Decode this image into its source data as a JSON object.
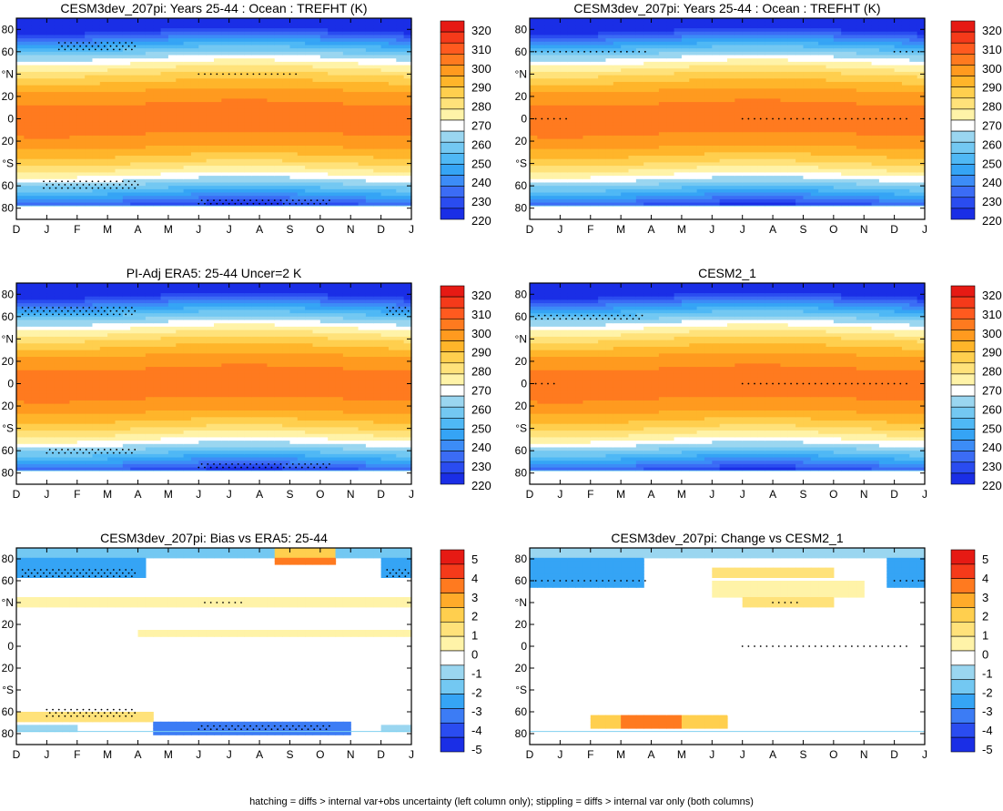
{
  "footer_note": "hatching = diffs > internal var+obs uncertainty (left column only); stippling = diffs > internal var only (both columns)",
  "colors": {
    "temperature_levels": [
      "#1a2ee6",
      "#2a4cf0",
      "#3b6cf5",
      "#3c8cf7",
      "#35a4f5",
      "#4fb8f5",
      "#73c8f2",
      "#9ad6f0",
      "#ffffff",
      "#fff3a8",
      "#ffe27a",
      "#ffcf4e",
      "#ffb52a",
      "#ff9a1f",
      "#ff7a1f",
      "#ff5a1f",
      "#f53a1a",
      "#e61a14"
    ],
    "anomaly_levels": [
      "#1a2ee6",
      "#2a4cf0",
      "#3c7cf5",
      "#35a4f5",
      "#73c8f2",
      "#9ad6f0",
      "#ffffff",
      "#fff3a8",
      "#ffe27a",
      "#ffcf4e",
      "#ffab2a",
      "#ff7a1f",
      "#f53a1a",
      "#e61a14"
    ]
  },
  "chart_data": [
    {
      "type": "heatmap",
      "title": "CESM3dev_207pi: Years 25-44 : Ocean : TREFHT (K)",
      "x_tick_labels": [
        "D",
        "J",
        "F",
        "M",
        "A",
        "M",
        "J",
        "J",
        "A",
        "S",
        "O",
        "N",
        "D",
        "J"
      ],
      "y_tick_labels": [
        "80",
        "60",
        "°N",
        "20",
        "0",
        "20",
        "°S",
        "60",
        "80"
      ],
      "colorbar_labels": [
        "320",
        "310",
        "300",
        "290",
        "280",
        "270",
        "260",
        "250",
        "240",
        "230",
        "220"
      ],
      "field": "temperature",
      "ylim": [
        -90,
        90
      ],
      "stipple_regions": [
        "northern 60-70 in Jan-Apr",
        "northern 40 in Jul-Sep",
        "southern 60 in Jan-Apr",
        "southern 75 in Jun-Oct"
      ]
    },
    {
      "type": "heatmap",
      "title": "CESM3dev_207pi: Years 25-44 : Ocean : TREFHT (K)",
      "x_tick_labels": [
        "D",
        "J",
        "F",
        "M",
        "A",
        "M",
        "J",
        "J",
        "A",
        "S",
        "O",
        "N",
        "D",
        "J"
      ],
      "y_tick_labels": [
        "80",
        "60",
        "°N",
        "20",
        "0",
        "20",
        "°S",
        "60",
        "80"
      ],
      "colorbar_labels": [
        "320",
        "310",
        "300",
        "290",
        "280",
        "270",
        "260",
        "250",
        "240",
        "230",
        "220"
      ],
      "field": "temperature",
      "ylim": [
        -90,
        90
      ],
      "stipple_regions": [
        "northern 60 in Dec-Apr",
        "equator Jul-Dec"
      ]
    },
    {
      "type": "heatmap",
      "title": "PI-Adj ERA5: 25-44 Uncer=2 K",
      "x_tick_labels": [
        "D",
        "J",
        "F",
        "M",
        "A",
        "M",
        "J",
        "J",
        "A",
        "S",
        "O",
        "N",
        "D",
        "J"
      ],
      "y_tick_labels": [
        "80",
        "60",
        "°N",
        "20",
        "0",
        "20",
        "°S",
        "60",
        "80"
      ],
      "colorbar_labels": [
        "320",
        "310",
        "300",
        "290",
        "280",
        "270",
        "260",
        "250",
        "240",
        "230",
        "220"
      ],
      "field": "temperature",
      "ylim": [
        -90,
        90
      ],
      "stipple_regions": [
        "northern 65 in Dec-Apr",
        "southern 60 in Jan-Apr",
        "southern 75 in Jun-Oct"
      ]
    },
    {
      "type": "heatmap",
      "title": "CESM2_1",
      "x_tick_labels": [
        "D",
        "J",
        "F",
        "M",
        "A",
        "M",
        "J",
        "J",
        "A",
        "S",
        "O",
        "N",
        "D",
        "J"
      ],
      "y_tick_labels": [
        "80",
        "60",
        "°N",
        "20",
        "0",
        "20",
        "°S",
        "60",
        "80"
      ],
      "colorbar_labels": [
        "320",
        "310",
        "300",
        "290",
        "280",
        "270",
        "260",
        "250",
        "240",
        "230",
        "220"
      ],
      "field": "temperature",
      "ylim": [
        -90,
        90
      ],
      "stipple_regions": [
        "northern 60 in Dec-Apr",
        "equator Jul-Dec"
      ]
    },
    {
      "type": "heatmap",
      "title": "CESM3dev_207pi: Bias vs ERA5: 25-44",
      "x_tick_labels": [
        "D",
        "J",
        "F",
        "M",
        "A",
        "M",
        "J",
        "J",
        "A",
        "S",
        "O",
        "N",
        "D",
        "J"
      ],
      "y_tick_labels": [
        "80",
        "60",
        "°N",
        "20",
        "0",
        "20",
        "°S",
        "60",
        "80"
      ],
      "colorbar_labels": [
        "5",
        "4",
        "3",
        "2",
        "1",
        "0",
        "-1",
        "-2",
        "-3",
        "-4",
        "-5"
      ],
      "field": "bias",
      "ylim": [
        -90,
        90
      ],
      "stipple_regions": [
        "northern 65 in Dec-Apr",
        "southern 60-70 in Jan-Apr",
        "southern 75 in Jun-Oct"
      ]
    },
    {
      "type": "heatmap",
      "title": "CESM3dev_207pi: Change vs CESM2_1",
      "x_tick_labels": [
        "D",
        "J",
        "F",
        "M",
        "A",
        "M",
        "J",
        "J",
        "A",
        "S",
        "O",
        "N",
        "D",
        "J"
      ],
      "y_tick_labels": [
        "80",
        "60",
        "°N",
        "20",
        "0",
        "20",
        "°S",
        "60",
        "80"
      ],
      "colorbar_labels": [
        "5",
        "4",
        "3",
        "2",
        "1",
        "0",
        "-1",
        "-2",
        "-3",
        "-4",
        "-5"
      ],
      "field": "change",
      "ylim": [
        -90,
        90
      ],
      "stipple_regions": [
        "northern 60 in Dec-Apr",
        "equator Jul-Dec"
      ]
    }
  ]
}
